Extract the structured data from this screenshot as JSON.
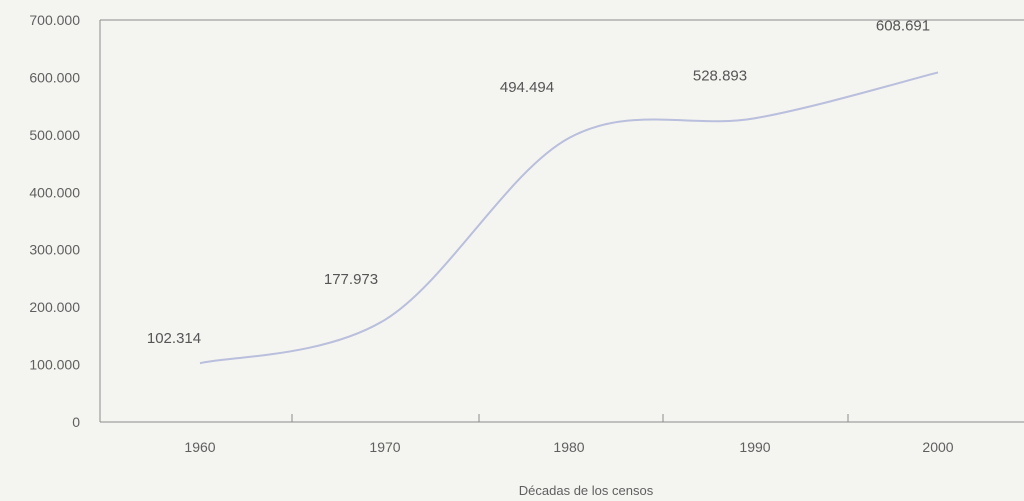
{
  "chart_data": {
    "type": "line",
    "title": "",
    "xlabel": "Décadas de los censos",
    "ylabel": "",
    "categories": [
      "1960",
      "1970",
      "1980",
      "1990",
      "2000"
    ],
    "series": [
      {
        "values": [
          102314,
          177973,
          494494,
          528893,
          608691
        ],
        "value_labels": [
          "102.314",
          "177.973",
          "494.494",
          "528.893",
          "608.691"
        ]
      }
    ],
    "ylim": [
      0,
      700000
    ],
    "y_ticks": [
      0,
      100000,
      200000,
      300000,
      400000,
      500000,
      600000,
      700000
    ],
    "y_tick_labels": [
      "0",
      "100.000",
      "200.000",
      "300.000",
      "400.000",
      "500.000",
      "600.000",
      "700.000"
    ],
    "grid": false,
    "line_color": "#b9bfdc",
    "axis_color": "#8c8c8c"
  }
}
